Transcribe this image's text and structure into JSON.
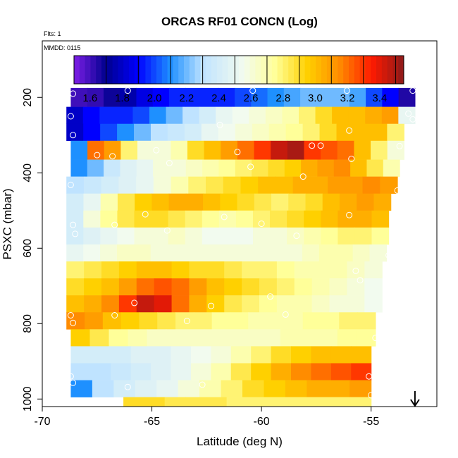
{
  "chart_data": {
    "type": "heatmap",
    "title": "ORCAS RF01 CONCN (Log)",
    "annotations": [
      "Flts: 1",
      "MMDD: 0115"
    ],
    "xlabel": "Latitude (deg N)",
    "ylabel": "PSXC (mbar)",
    "xlim": [
      -70,
      -52
    ],
    "ylim": [
      1020,
      50
    ],
    "xticks": [
      -70,
      -65,
      -60,
      -55
    ],
    "xtick_labels": [
      "-70",
      "-65",
      "-60",
      "-55"
    ],
    "yticks": [
      200,
      400,
      600,
      800,
      1000
    ],
    "ytick_labels": [
      "200",
      "400",
      "600",
      "800",
      "1000"
    ],
    "colorbar": {
      "min": 1.5,
      "max": 3.55,
      "ticks": [
        1.6,
        1.8,
        2.0,
        2.2,
        2.4,
        2.6,
        2.8,
        3.0,
        3.2,
        3.4
      ],
      "tick_labels": [
        "1.6",
        "1.8",
        "2.0",
        "2.2",
        "2.4",
        "2.6",
        "2.8",
        "3.0",
        "3.2",
        "3.4"
      ],
      "divisions": [
        1.5,
        1.7,
        1.9,
        2.1,
        2.3,
        2.5,
        2.7,
        2.9,
        3.1,
        3.3,
        3.5
      ],
      "palette": [
        "#7f1fe6",
        "#00008f",
        "#0000ff",
        "#1e90ff",
        "#bfe3ff",
        "#f2fbef",
        "#ffff99",
        "#ffd000",
        "#ff8c00",
        "#ff1a00",
        "#8b1a1a"
      ],
      "palette_stops": [
        1.5,
        1.7,
        1.9,
        2.1,
        2.3,
        2.55,
        2.75,
        2.95,
        3.15,
        3.35,
        3.55
      ]
    },
    "layers": [
      {
        "p_top": 175,
        "p_bottom": 225,
        "lat_min": -68.7,
        "lat_max": -53,
        "values": [
          1.6,
          1.62,
          1.68,
          1.75,
          1.85,
          1.9,
          1.95,
          1.95,
          1.95,
          1.95,
          2.0,
          2.05,
          2.1,
          2.15,
          2.2,
          2.2,
          2.2,
          2.15,
          2.0,
          1.9,
          1.65
        ]
      },
      {
        "p_top": 225,
        "p_bottom": 270,
        "lat_min": -68.9,
        "lat_max": -53,
        "values": [
          1.8,
          1.9,
          1.95,
          1.95,
          2.0,
          2.1,
          2.2,
          2.3,
          2.4,
          2.5,
          2.55,
          2.6,
          2.65,
          2.7,
          2.8,
          2.9,
          3.0,
          3.0,
          3.05,
          3.1,
          2.5
        ]
      },
      {
        "p_top": 270,
        "p_bottom": 315,
        "lat_min": -68.9,
        "lat_max": -53.5,
        "values": [
          1.8,
          1.9,
          2.0,
          2.1,
          2.2,
          2.3,
          2.35,
          2.4,
          2.5,
          2.55,
          2.6,
          2.65,
          2.7,
          2.75,
          2.8,
          2.9,
          3.0,
          3.0,
          3.0,
          2.8
        ]
      },
      {
        "p_top": 315,
        "p_bottom": 365,
        "lat_min": -68.7,
        "lat_max": -53.5,
        "values": [
          2.1,
          3.2,
          3.1,
          2.8,
          2.6,
          2.6,
          2.7,
          2.9,
          3.0,
          3.1,
          3.2,
          3.3,
          3.45,
          3.5,
          3.3,
          3.25,
          3.2,
          3.0,
          2.8,
          2.6
        ]
      },
      {
        "p_top": 365,
        "p_bottom": 410,
        "lat_min": -68.7,
        "lat_max": -53.7,
        "values": [
          2.1,
          2.2,
          2.35,
          2.45,
          2.5,
          2.6,
          2.6,
          2.65,
          2.7,
          2.75,
          2.8,
          2.85,
          2.9,
          2.95,
          3.05,
          3.1,
          3.15,
          3.0,
          2.85,
          2.7
        ]
      },
      {
        "p_top": 410,
        "p_bottom": 455,
        "lat_min": -68.9,
        "lat_max": -53.8,
        "values": [
          2.3,
          2.35,
          2.4,
          2.45,
          2.5,
          2.6,
          2.7,
          2.8,
          2.85,
          2.9,
          2.95,
          3.0,
          3.0,
          3.05,
          3.05,
          3.1,
          3.1,
          3.15,
          3.1
        ]
      },
      {
        "p_top": 455,
        "p_bottom": 500,
        "lat_min": -68.9,
        "lat_max": -54.1,
        "values": [
          2.4,
          2.5,
          2.7,
          2.85,
          2.95,
          3.0,
          3.05,
          3.05,
          3.0,
          2.95,
          2.9,
          2.85,
          2.8,
          2.85,
          2.9,
          3.0,
          3.05,
          3.1,
          3.05
        ]
      },
      {
        "p_top": 500,
        "p_bottom": 545,
        "lat_min": -68.9,
        "lat_max": -54.2,
        "values": [
          2.4,
          2.6,
          2.75,
          2.85,
          2.9,
          2.9,
          2.85,
          2.8,
          2.75,
          2.7,
          2.75,
          2.8,
          2.85,
          2.9,
          2.95,
          3.0,
          3.05,
          3.05,
          3.0
        ]
      },
      {
        "p_top": 545,
        "p_bottom": 590,
        "lat_min": -68.9,
        "lat_max": -54.2,
        "values": [
          2.4,
          2.45,
          2.5,
          2.55,
          2.6,
          2.6,
          2.65,
          2.6,
          2.55,
          2.55,
          2.55,
          2.6,
          2.6,
          2.65,
          2.7,
          2.75,
          2.8,
          2.8,
          2.75
        ]
      },
      {
        "p_top": 590,
        "p_bottom": 635,
        "lat_min": -68.9,
        "lat_max": -54.3,
        "values": [
          2.5,
          2.55,
          2.6,
          2.65,
          2.65,
          2.6,
          2.6,
          2.6,
          2.6,
          2.6,
          2.6,
          2.6,
          2.6,
          2.6,
          2.65,
          2.7,
          2.7,
          2.65,
          2.6
        ]
      },
      {
        "p_top": 635,
        "p_bottom": 680,
        "lat_min": -68.9,
        "lat_max": -54.5,
        "values": [
          2.8,
          2.85,
          2.9,
          2.95,
          3.0,
          3.0,
          2.95,
          2.9,
          2.9,
          2.85,
          2.8,
          2.8,
          2.75,
          2.7,
          2.7,
          2.7,
          2.65,
          2.6
        ]
      },
      {
        "p_top": 680,
        "p_bottom": 725,
        "lat_min": -68.9,
        "lat_max": -54.5,
        "values": [
          2.9,
          2.95,
          3.0,
          3.1,
          3.2,
          3.25,
          3.2,
          3.1,
          3.0,
          2.95,
          2.9,
          2.85,
          2.8,
          2.75,
          2.7,
          2.65,
          2.6,
          2.55
        ]
      },
      {
        "p_top": 725,
        "p_bottom": 770,
        "lat_min": -68.9,
        "lat_max": -54.5,
        "values": [
          3.0,
          3.05,
          3.15,
          3.3,
          3.45,
          3.4,
          3.2,
          3.05,
          2.95,
          2.85,
          2.8,
          2.75,
          2.7,
          2.7,
          2.65,
          2.6,
          2.6,
          2.55
        ]
      },
      {
        "p_top": 770,
        "p_bottom": 815,
        "lat_min": -68.9,
        "lat_max": -54.8,
        "values": [
          3.15,
          3.1,
          3.0,
          2.95,
          2.9,
          2.85,
          2.8,
          2.8,
          2.75,
          2.75,
          2.7,
          2.7,
          2.7,
          2.75,
          2.75,
          2.8,
          2.8
        ]
      },
      {
        "p_top": 815,
        "p_bottom": 860,
        "lat_min": -68.7,
        "lat_max": -54.8,
        "values": [
          2.95,
          2.85,
          2.75,
          2.7,
          2.65,
          2.65,
          2.65,
          2.65,
          2.65,
          2.65,
          2.65,
          2.7,
          2.7,
          2.7,
          2.75,
          2.75
        ]
      },
      {
        "p_top": 860,
        "p_bottom": 905,
        "lat_min": -68.7,
        "lat_max": -55.0,
        "values": [
          2.4,
          2.4,
          2.4,
          2.45,
          2.45,
          2.5,
          2.55,
          2.6,
          2.7,
          2.8,
          2.9,
          2.95,
          3.0,
          3.0,
          3.0
        ]
      },
      {
        "p_top": 905,
        "p_bottom": 950,
        "lat_min": -68.7,
        "lat_max": -55.0,
        "values": [
          2.3,
          2.3,
          2.35,
          2.4,
          2.45,
          2.5,
          2.6,
          2.7,
          2.85,
          2.95,
          3.05,
          3.15,
          3.2,
          3.25,
          3.3
        ]
      },
      {
        "p_top": 950,
        "p_bottom": 995,
        "lat_min": -68.7,
        "lat_max": -55.0,
        "values": [
          2.1,
          2.3,
          2.4,
          2.45,
          2.5,
          2.6,
          2.7,
          2.8,
          2.9,
          2.95,
          3.0,
          3.05,
          3.05,
          3.1
        ]
      },
      {
        "p_top": 995,
        "p_bottom": 1020,
        "lat_min": -66.3,
        "lat_max": -55.0,
        "values": [
          2.9,
          2.9,
          2.85,
          2.85,
          2.85,
          2.8,
          2.8,
          2.8,
          2.8,
          2.8,
          2.8,
          2.8
        ]
      }
    ],
    "markers": [
      {
        "lat": -68.6,
        "p": 190
      },
      {
        "lat": -66.1,
        "p": 182
      },
      {
        "lat": -60.4,
        "p": 182
      },
      {
        "lat": -56.1,
        "p": 182
      },
      {
        "lat": -53.1,
        "p": 182
      },
      {
        "lat": -68.7,
        "p": 250
      },
      {
        "lat": -61.9,
        "p": 273
      },
      {
        "lat": -53.3,
        "p": 243
      },
      {
        "lat": -53.1,
        "p": 258
      },
      {
        "lat": -68.6,
        "p": 300
      },
      {
        "lat": -56.0,
        "p": 288
      },
      {
        "lat": -67.5,
        "p": 353
      },
      {
        "lat": -66.8,
        "p": 356
      },
      {
        "lat": -64.8,
        "p": 340
      },
      {
        "lat": -61.1,
        "p": 345
      },
      {
        "lat": -57.7,
        "p": 328
      },
      {
        "lat": -57.3,
        "p": 328
      },
      {
        "lat": -55.9,
        "p": 363
      },
      {
        "lat": -53.7,
        "p": 329
      },
      {
        "lat": -60.5,
        "p": 384
      },
      {
        "lat": -58.1,
        "p": 410
      },
      {
        "lat": -64.2,
        "p": 374
      },
      {
        "lat": -68.7,
        "p": 432
      },
      {
        "lat": -53.8,
        "p": 447
      },
      {
        "lat": -65.3,
        "p": 510
      },
      {
        "lat": -61.7,
        "p": 517
      },
      {
        "lat": -56.0,
        "p": 512
      },
      {
        "lat": -68.6,
        "p": 538
      },
      {
        "lat": -66.7,
        "p": 538
      },
      {
        "lat": -60.0,
        "p": 535
      },
      {
        "lat": -68.5,
        "p": 562
      },
      {
        "lat": -64.3,
        "p": 553
      },
      {
        "lat": -58.4,
        "p": 567
      },
      {
        "lat": -54.2,
        "p": 619
      },
      {
        "lat": -55.7,
        "p": 660
      },
      {
        "lat": -55.5,
        "p": 685
      },
      {
        "lat": -65.8,
        "p": 745
      },
      {
        "lat": -62.3,
        "p": 753
      },
      {
        "lat": -59.6,
        "p": 728
      },
      {
        "lat": -68.7,
        "p": 778
      },
      {
        "lat": -68.6,
        "p": 798
      },
      {
        "lat": -66.7,
        "p": 778
      },
      {
        "lat": -63.4,
        "p": 793
      },
      {
        "lat": -58.9,
        "p": 776
      },
      {
        "lat": -54.6,
        "p": 805
      },
      {
        "lat": -54.8,
        "p": 838
      },
      {
        "lat": -68.7,
        "p": 940
      },
      {
        "lat": -68.6,
        "p": 957
      },
      {
        "lat": -55.1,
        "p": 940
      },
      {
        "lat": -66.1,
        "p": 968
      },
      {
        "lat": -62.7,
        "p": 962
      },
      {
        "lat": -55.0,
        "p": 990
      }
    ],
    "arrow": {
      "lat": -53.0,
      "direction": "down"
    }
  }
}
